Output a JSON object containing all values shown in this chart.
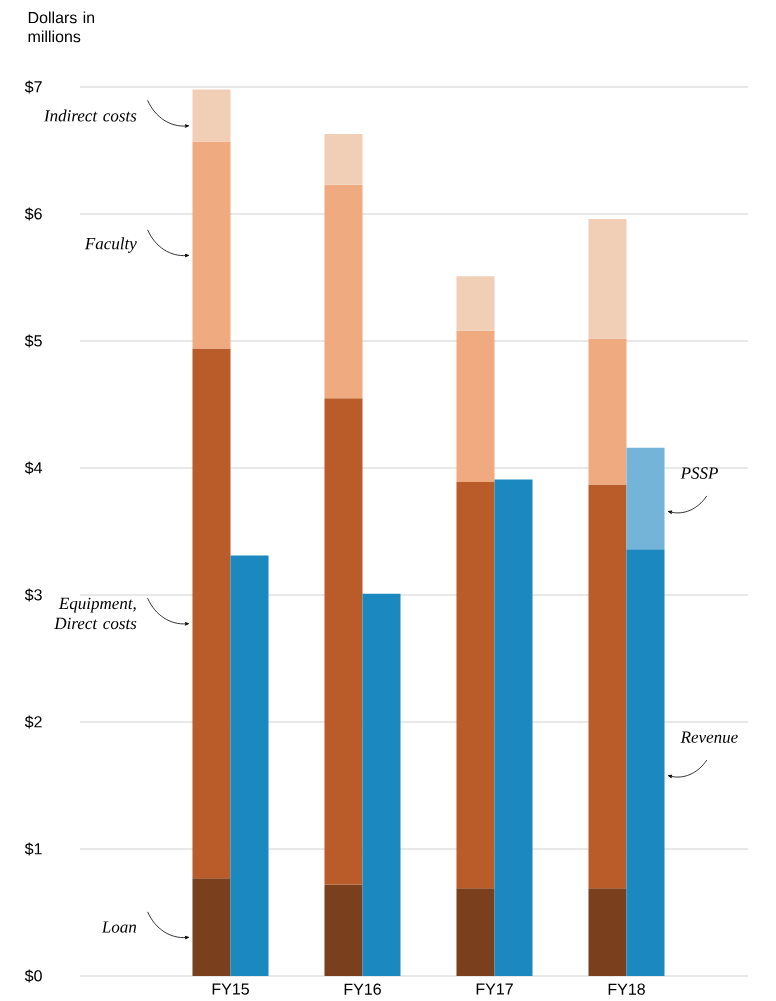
{
  "chart_data": {
    "type": "bar",
    "ylabel": "Dollars in millions",
    "categories": [
      "FY15",
      "FY16",
      "FY17",
      "FY18"
    ],
    "ylim": [
      0,
      7
    ],
    "yticks": [
      {
        "value": 0,
        "label": "$0"
      },
      {
        "value": 1,
        "label": "$1"
      },
      {
        "value": 2,
        "label": "$2"
      },
      {
        "value": 3,
        "label": "$3"
      },
      {
        "value": 4,
        "label": "$4"
      },
      {
        "value": 5,
        "label": "$5"
      },
      {
        "value": 6,
        "label": "$6"
      },
      {
        "value": 7,
        "label": "$7"
      }
    ],
    "grid": "y",
    "series": [
      {
        "name": "Loan",
        "color": "#7a3f1c",
        "base": [
          0,
          0,
          0,
          0
        ],
        "values": [
          0.77,
          0.72,
          0.69,
          0.69
        ]
      },
      {
        "name": "Equipment, Direct costs",
        "color": "#b95c29",
        "base": [
          0.77,
          0.72,
          0.69,
          0.69
        ],
        "values": [
          4.17,
          3.83,
          3.2,
          3.18
        ]
      },
      {
        "name": "Faculty",
        "color": "#f0aa80",
        "base": [
          4.94,
          4.55,
          3.89,
          3.87
        ],
        "values": [
          1.63,
          1.68,
          1.19,
          1.15
        ]
      },
      {
        "name": "Indirect costs",
        "color": "#f1cfb7",
        "base": [
          6.57,
          6.23,
          5.08,
          5.02
        ],
        "values": [
          0.41,
          0.4,
          0.43,
          0.94
        ]
      },
      {
        "name": "Revenue",
        "color": "#1b88c0",
        "base": [
          0,
          0,
          0,
          0
        ],
        "values": [
          3.31,
          3.01,
          3.91,
          3.36
        ]
      },
      {
        "name": "PSSP",
        "color": "#74b4d9",
        "base": [
          null,
          null,
          null,
          3.36
        ],
        "values": [
          null,
          null,
          null,
          0.8
        ]
      }
    ]
  }
}
